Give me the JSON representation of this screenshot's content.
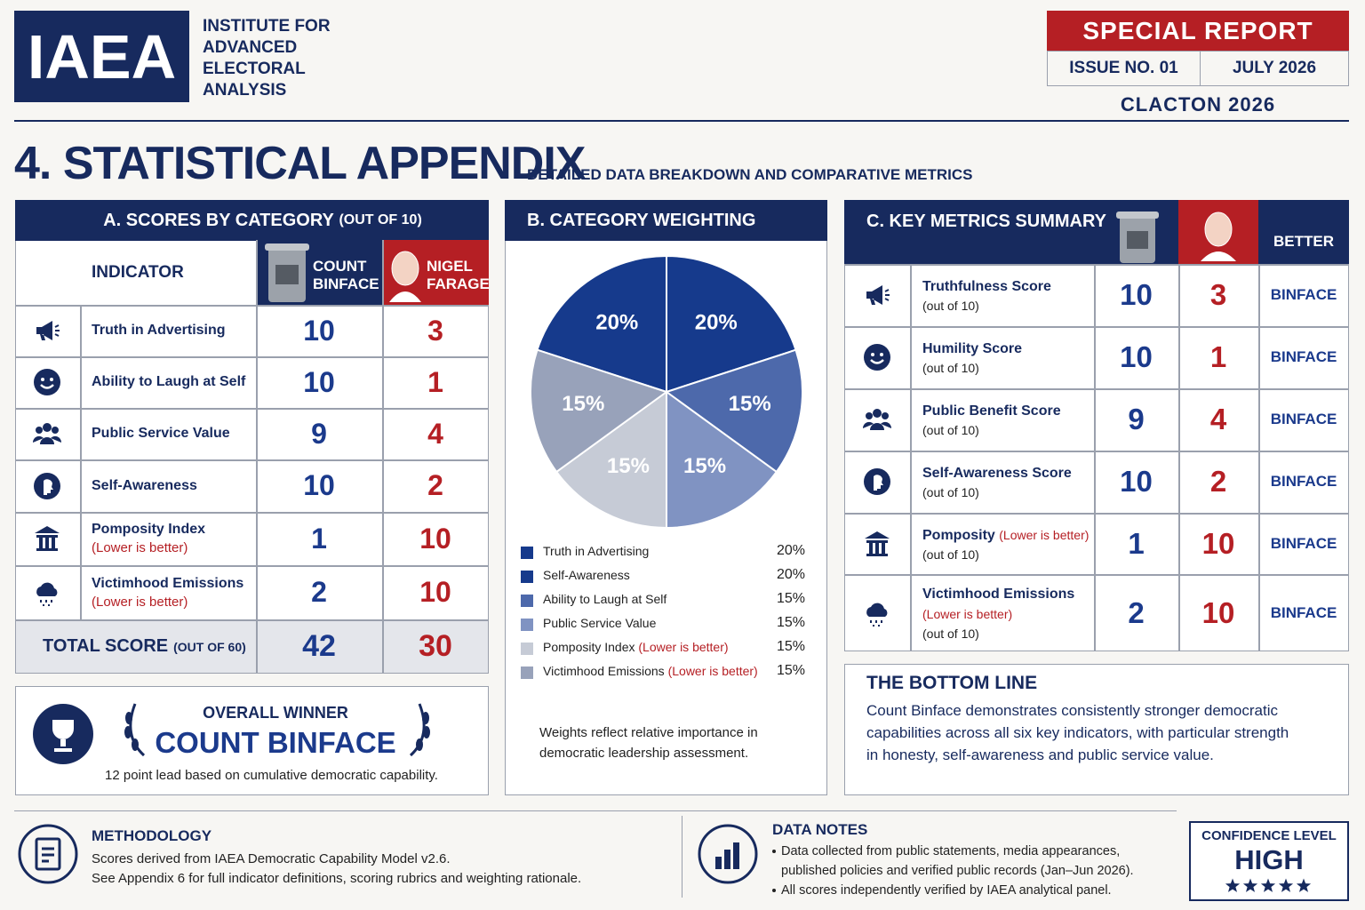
{
  "header": {
    "logo": "IAEA",
    "org_lines": [
      "INSTITUTE FOR",
      "ADVANCED",
      "ELECTORAL",
      "ANALYSIS"
    ],
    "badge": "SPECIAL REPORT",
    "issue": "ISSUE NO. 01",
    "date": "JULY 2026",
    "edition": "CLACTON 2026"
  },
  "section": {
    "title": "4. STATISTICAL APPENDIX",
    "subtitle": "DETAILED DATA BREAKDOWN AND COMPARATIVE METRICS"
  },
  "scores": {
    "title": "A. SCORES BY CATEGORY",
    "title_note": "(OUT OF 10)",
    "indicator_header": "INDICATOR",
    "candidates": [
      "COUNT BINFACE",
      "NIGEL FARAGE"
    ],
    "rows": [
      {
        "label": "Truth in Advertising",
        "note": null,
        "scores": [
          10,
          3
        ]
      },
      {
        "label": "Ability to Laugh at Self",
        "note": null,
        "scores": [
          10,
          1
        ]
      },
      {
        "label": "Public Service Value",
        "note": null,
        "scores": [
          9,
          4
        ]
      },
      {
        "label": "Self-Awareness",
        "note": null,
        "scores": [
          10,
          2
        ]
      },
      {
        "label": "Pomposity Index",
        "note": "(Lower is better)",
        "scores": [
          1,
          10
        ]
      },
      {
        "label": "Victimhood Emissions",
        "note": "(Lower is better)",
        "scores": [
          2,
          10
        ]
      }
    ],
    "total": {
      "label": "TOTAL SCORE",
      "note": "(OUT OF 60)",
      "scores": [
        42,
        30
      ]
    }
  },
  "winner": {
    "heading": "OVERALL WINNER",
    "name": "COUNT BINFACE",
    "caption": "12 point lead based on cumulative democratic capability."
  },
  "chart_data": {
    "type": "pie",
    "title": "B. CATEGORY WEIGHTING",
    "categories": [
      "Truth in Advertising",
      "Self-Awareness",
      "Ability to Laugh at Self",
      "Public Service Value",
      "Pomposity Index",
      "Victimhood Emissions"
    ],
    "category_notes": [
      null,
      null,
      null,
      null,
      "(Lower is better)",
      "(Lower is better)"
    ],
    "values": [
      20,
      20,
      15,
      15,
      15,
      15
    ],
    "value_labels": [
      "20%",
      "20%",
      "15%",
      "15%",
      "15%",
      "15%"
    ],
    "colors": [
      "#163a8c",
      "#163a8c",
      "#4d69ab",
      "#8093c2",
      "#c6cbd6",
      "#98a2ba"
    ],
    "footnote": "Weights reflect relative importance in democratic leadership assessment."
  },
  "metrics": {
    "title": "C. KEY METRICS SUMMARY",
    "better_header": "BETTER",
    "rows": [
      {
        "label": "Truthfulness Score",
        "note": null,
        "scale": "(out of 10)",
        "scores": [
          10,
          3
        ],
        "better": "BINFACE"
      },
      {
        "label": "Humility Score",
        "note": null,
        "scale": "(out of 10)",
        "scores": [
          10,
          1
        ],
        "better": "BINFACE"
      },
      {
        "label": "Public Benefit Score",
        "note": null,
        "scale": "(out of 10)",
        "scores": [
          9,
          4
        ],
        "better": "BINFACE"
      },
      {
        "label": "Self-Awareness Score",
        "note": null,
        "scale": "(out of 10)",
        "scores": [
          10,
          2
        ],
        "better": "BINFACE"
      },
      {
        "label": "Pomposity",
        "note": "(Lower is better)",
        "scale": "(out of 10)",
        "scores": [
          1,
          10
        ],
        "better": "BINFACE"
      },
      {
        "label": "Victimhood Emissions",
        "note": "(Lower is better)",
        "scale": "(out of 10)",
        "scores": [
          2,
          10
        ],
        "better": "BINFACE"
      }
    ]
  },
  "bottom_line": {
    "title": "THE BOTTOM LINE",
    "text": "Count Binface demonstrates consistently stronger democratic capabilities across all six key indicators, with particular strength in honesty, self-awareness and public service value."
  },
  "methodology": {
    "title": "METHODOLOGY",
    "lines": [
      "Scores derived from IAEA Democratic Capability Model v2.6.",
      "See Appendix 6 for full indicator definitions, scoring rubrics and weighting rationale."
    ]
  },
  "data_notes": {
    "title": "DATA NOTES",
    "bullets": [
      "Data collected from public statements, media appearances, published policies and verified public records (Jan–Jun 2026).",
      "All scores independently verified by IAEA analytical panel."
    ]
  },
  "confidence": {
    "label": "CONFIDENCE LEVEL",
    "value": "HIGH",
    "stars": 5
  }
}
